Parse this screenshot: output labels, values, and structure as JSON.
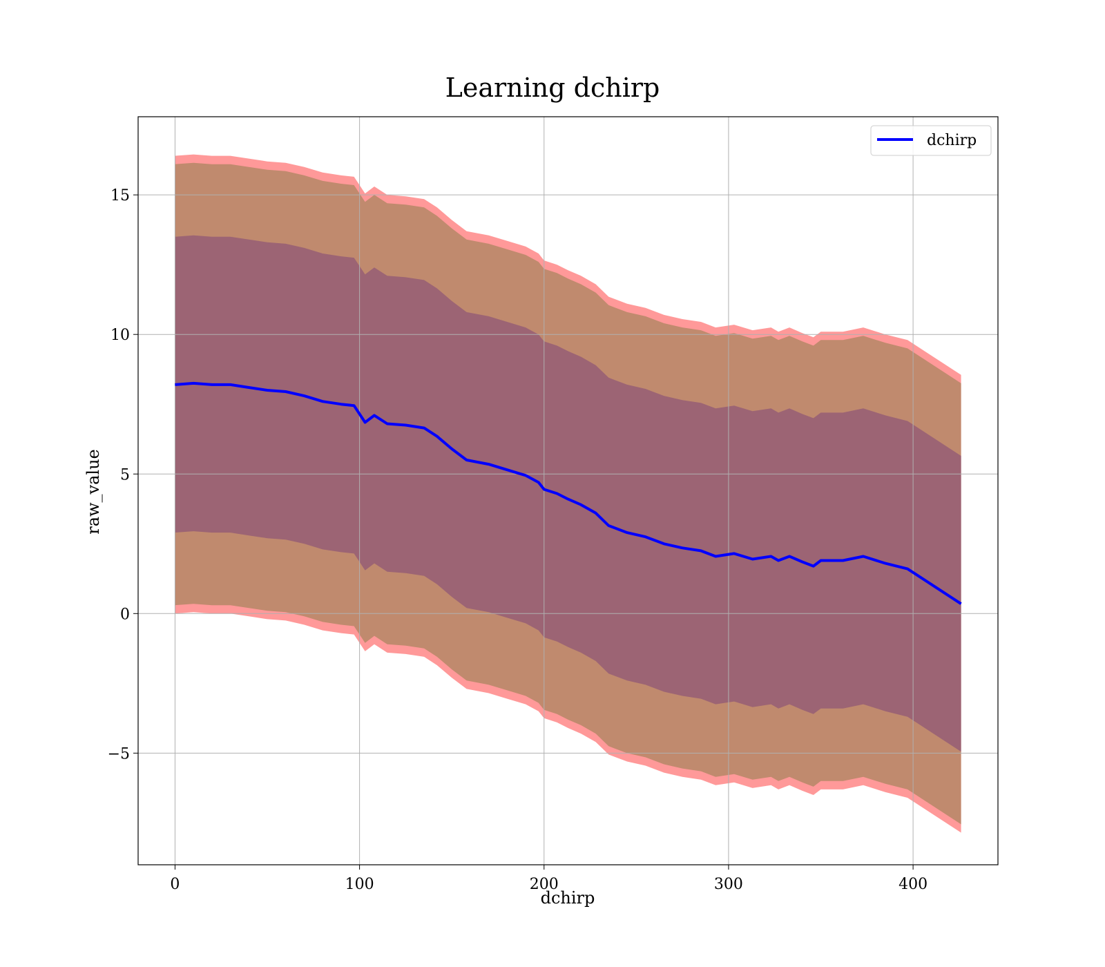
{
  "chart_data": {
    "type": "line",
    "title": "Learning dchirp",
    "xlabel": "dchirp",
    "ylabel": "raw_value",
    "xlim": [
      -20,
      446
    ],
    "ylim": [
      -9,
      17.8
    ],
    "xticks": [
      0,
      100,
      200,
      300,
      400
    ],
    "yticks": [
      -5,
      0,
      5,
      10,
      15
    ],
    "ytick_labels": [
      "−5",
      "0",
      "5",
      "10",
      "15"
    ],
    "grid": true,
    "legend_position": "top-right",
    "series": [
      {
        "name": "dchirp",
        "color": "#0000ff",
        "x": [
          0,
          10,
          20,
          30,
          40,
          50,
          60,
          70,
          80,
          90,
          97,
          103,
          108,
          115,
          125,
          135,
          142,
          150,
          158,
          170,
          180,
          190,
          197,
          200,
          207,
          213,
          220,
          228,
          235,
          245,
          255,
          265,
          275,
          285,
          293,
          303,
          313,
          323,
          327,
          333,
          340,
          346,
          350,
          362,
          373,
          385,
          397,
          426
        ],
        "y": [
          8.2,
          8.25,
          8.2,
          8.2,
          8.1,
          8.0,
          7.95,
          7.8,
          7.6,
          7.5,
          7.45,
          6.85,
          7.1,
          6.8,
          6.75,
          6.65,
          6.35,
          5.9,
          5.5,
          5.35,
          5.15,
          4.95,
          4.7,
          4.45,
          4.3,
          4.1,
          3.9,
          3.6,
          3.15,
          2.9,
          2.75,
          2.5,
          2.35,
          2.25,
          2.05,
          2.15,
          1.95,
          2.05,
          1.9,
          2.05,
          1.85,
          1.7,
          1.9,
          1.9,
          2.05,
          1.8,
          1.6,
          0.35
        ]
      }
    ],
    "bands": [
      {
        "description": "outer",
        "color": "#ff9999",
        "offset": 8.2
      },
      {
        "description": "middle",
        "color": "#c08a6e",
        "offset": 7.9
      },
      {
        "description": "inner",
        "color": "#9c6474",
        "offset": 5.3
      }
    ]
  }
}
